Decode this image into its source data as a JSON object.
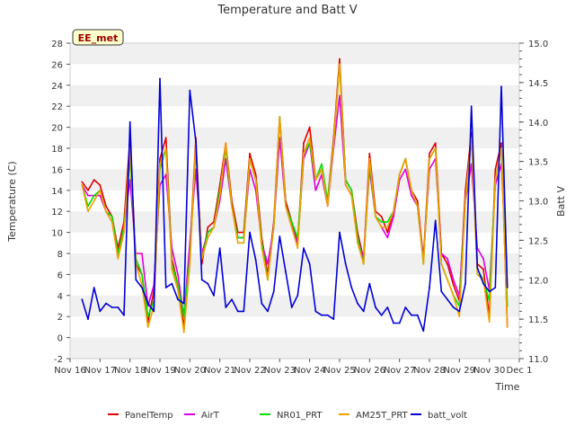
{
  "chart_data": {
    "type": "line",
    "title": "Temperature and Batt V",
    "site_label": "EE_met",
    "xlabel": "Time",
    "ylabel": "Temperature (C)",
    "y2label": "Batt V",
    "xlim": [
      16,
      31
    ],
    "ylim": [
      -2,
      28
    ],
    "y2lim": [
      11.0,
      15.0
    ],
    "x_ticks": [
      {
        "x": 16,
        "label": "Nov 16"
      },
      {
        "x": 17,
        "label": "Nov 17"
      },
      {
        "x": 18,
        "label": "Nov 18"
      },
      {
        "x": 19,
        "label": "Nov 19"
      },
      {
        "x": 20,
        "label": "Nov 20"
      },
      {
        "x": 21,
        "label": "Nov 21"
      },
      {
        "x": 22,
        "label": "Nov 22"
      },
      {
        "x": 23,
        "label": "Nov 23"
      },
      {
        "x": 24,
        "label": "Nov 24"
      },
      {
        "x": 25,
        "label": "Nov 25"
      },
      {
        "x": 26,
        "label": "Nov 26"
      },
      {
        "x": 27,
        "label": "Nov 27"
      },
      {
        "x": 28,
        "label": "Nov 28"
      },
      {
        "x": 29,
        "label": "Nov 29"
      },
      {
        "x": 30,
        "label": "Nov 30"
      },
      {
        "x": 31,
        "label": "Dec 1"
      }
    ],
    "y_ticks": [
      "-2",
      "0",
      "2",
      "4",
      "6",
      "8",
      "10",
      "12",
      "14",
      "16",
      "18",
      "20",
      "22",
      "24",
      "26",
      "28"
    ],
    "y2_ticks": [
      "11.0",
      "11.5",
      "12.0",
      "12.5",
      "13.0",
      "13.5",
      "14.0",
      "14.5",
      "15.0"
    ],
    "grid": "horizontal alternating bands",
    "legend_position": "bottom",
    "colors": {
      "PanelTemp": "#e00000",
      "AirT": "#e000e0",
      "NR01_PRT": "#00e000",
      "AM25T_PRT": "#f0a000",
      "batt_volt": "#0000d8"
    },
    "x": [
      16.4,
      16.6,
      16.8,
      17.0,
      17.2,
      17.4,
      17.6,
      17.8,
      18.0,
      18.2,
      18.4,
      18.6,
      18.8,
      19.0,
      19.2,
      19.4,
      19.6,
      19.8,
      20.0,
      20.2,
      20.4,
      20.6,
      20.8,
      21.0,
      21.2,
      21.4,
      21.6,
      21.8,
      22.0,
      22.2,
      22.4,
      22.6,
      22.8,
      23.0,
      23.2,
      23.4,
      23.6,
      23.8,
      24.0,
      24.2,
      24.4,
      24.6,
      24.8,
      25.0,
      25.2,
      25.4,
      25.6,
      25.8,
      26.0,
      26.2,
      26.4,
      26.6,
      26.8,
      27.0,
      27.2,
      27.4,
      27.6,
      27.8,
      28.0,
      28.2,
      28.4,
      28.6,
      28.8,
      29.0,
      29.2,
      29.4,
      29.6,
      29.8,
      30.0,
      30.2,
      30.4,
      30.6
    ],
    "series": [
      {
        "name": "PanelTemp",
        "values": [
          14.8,
          14.0,
          15.0,
          14.5,
          12.5,
          11.5,
          8.5,
          11.0,
          19.0,
          7.0,
          6.0,
          1.5,
          4.5,
          17.0,
          19.0,
          7.5,
          5.0,
          1.0,
          8.0,
          19.0,
          7.0,
          10.5,
          11.0,
          14.5,
          18.5,
          13.0,
          10.0,
          10.0,
          17.5,
          15.5,
          9.5,
          6.0,
          11.0,
          21.0,
          13.0,
          11.0,
          9.0,
          18.5,
          20.0,
          15.0,
          16.0,
          13.0,
          19.0,
          26.5,
          15.0,
          14.0,
          10.0,
          7.5,
          17.5,
          12.0,
          11.5,
          10.0,
          12.0,
          15.5,
          17.0,
          14.0,
          13.0,
          7.5,
          17.5,
          18.5,
          8.0,
          7.0,
          5.0,
          3.5,
          14.0,
          19.5,
          7.0,
          6.5,
          2.0,
          16.0,
          18.5,
          1.0
        ]
      },
      {
        "name": "AirT",
        "values": [
          14.5,
          13.5,
          13.5,
          13.5,
          12.0,
          11.0,
          8.0,
          10.5,
          15.0,
          8.0,
          8.0,
          3.0,
          5.0,
          14.5,
          15.5,
          8.5,
          6.0,
          2.0,
          9.0,
          16.0,
          8.0,
          10.0,
          10.5,
          13.0,
          17.0,
          12.5,
          9.5,
          9.5,
          16.0,
          14.0,
          9.0,
          7.0,
          10.5,
          19.0,
          12.5,
          10.5,
          9.0,
          17.0,
          18.5,
          14.0,
          15.5,
          12.5,
          18.0,
          23.0,
          14.5,
          13.5,
          9.5,
          7.5,
          16.0,
          11.5,
          10.5,
          9.5,
          11.5,
          15.0,
          16.0,
          13.5,
          12.5,
          7.5,
          16.0,
          17.0,
          8.0,
          7.5,
          5.5,
          4.0,
          13.0,
          16.5,
          8.5,
          7.5,
          4.5,
          14.5,
          16.5,
          5.0
        ]
      },
      {
        "name": "NR01_PRT",
        "values": [
          14.5,
          12.5,
          13.5,
          14.0,
          12.0,
          11.5,
          8.0,
          10.5,
          17.0,
          7.5,
          6.0,
          2.0,
          3.5,
          16.0,
          18.0,
          7.0,
          5.0,
          2.0,
          7.5,
          18.0,
          7.5,
          10.0,
          10.5,
          14.0,
          18.0,
          12.5,
          9.5,
          9.5,
          17.0,
          15.0,
          9.0,
          5.5,
          10.5,
          21.0,
          12.5,
          11.0,
          9.5,
          17.5,
          18.5,
          15.0,
          16.5,
          13.0,
          18.5,
          26.0,
          15.0,
          14.0,
          9.5,
          7.0,
          16.5,
          11.5,
          11.0,
          11.0,
          12.0,
          15.5,
          17.0,
          14.0,
          12.5,
          7.0,
          17.0,
          18.0,
          7.0,
          5.5,
          4.0,
          3.0,
          13.0,
          19.0,
          6.5,
          5.5,
          3.5,
          15.0,
          18.0,
          3.0
        ]
      },
      {
        "name": "AM25T_PRT",
        "values": [
          14.5,
          12.0,
          13.0,
          14.0,
          12.0,
          11.0,
          7.5,
          10.0,
          18.0,
          7.0,
          5.0,
          1.0,
          3.0,
          16.5,
          18.0,
          6.5,
          4.5,
          0.5,
          7.0,
          18.5,
          7.5,
          9.5,
          10.5,
          13.5,
          18.5,
          12.5,
          9.0,
          9.0,
          17.0,
          15.0,
          8.5,
          5.5,
          10.5,
          21.0,
          12.5,
          10.5,
          8.5,
          17.5,
          19.0,
          15.0,
          16.0,
          12.5,
          18.5,
          26.0,
          14.5,
          13.5,
          9.0,
          7.0,
          17.0,
          11.5,
          10.5,
          10.5,
          12.0,
          15.5,
          17.0,
          14.0,
          12.5,
          7.0,
          17.0,
          18.0,
          7.0,
          5.5,
          4.0,
          2.0,
          13.0,
          19.0,
          6.0,
          5.5,
          1.5,
          15.0,
          18.0,
          1.0
        ]
      },
      {
        "name": "batt_volt",
        "axis": "y2",
        "values": [
          11.75,
          11.5,
          11.9,
          11.6,
          11.7,
          11.65,
          11.65,
          11.55,
          14.0,
          12.0,
          11.9,
          11.7,
          11.6,
          14.55,
          11.9,
          11.95,
          11.75,
          11.7,
          14.4,
          13.75,
          12.0,
          11.95,
          11.8,
          12.4,
          11.65,
          11.75,
          11.6,
          11.6,
          12.6,
          12.25,
          11.7,
          11.6,
          11.85,
          12.55,
          12.1,
          11.65,
          11.8,
          12.4,
          12.2,
          11.6,
          11.55,
          11.55,
          11.5,
          12.6,
          12.2,
          11.9,
          11.7,
          11.6,
          11.95,
          11.65,
          11.55,
          11.65,
          11.45,
          11.45,
          11.65,
          11.55,
          11.55,
          11.35,
          11.9,
          12.75,
          11.85,
          11.75,
          11.65,
          11.6,
          11.95,
          14.2,
          12.15,
          11.95,
          11.85,
          11.9,
          14.45,
          11.9
        ]
      }
    ]
  }
}
